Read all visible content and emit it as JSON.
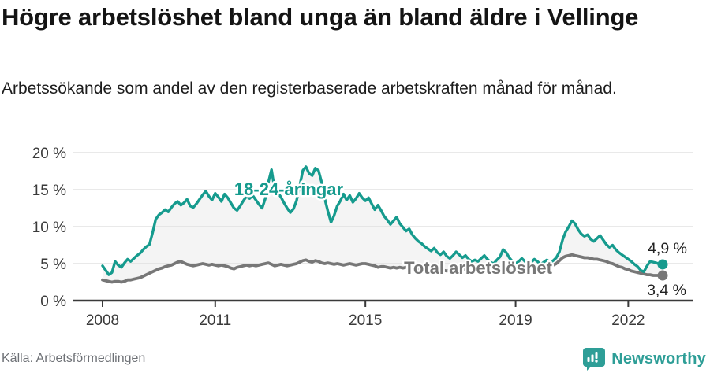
{
  "header": {
    "title": "Högre arbetslöshet bland unga än bland äldre i Vellinge",
    "subtitle": "Arbetssökande som andel av den registerbaserade arbetskraften månad för månad."
  },
  "footer": {
    "source": "Källa: Arbetsförmedlingen",
    "brand": "Newsworthy"
  },
  "theme": {
    "teal": "#169b8e",
    "gray": "#777777",
    "grid": "#dcdcdc",
    "axis": "#3a3a3a",
    "fill_between": "#f4f4f4",
    "value_label": "#222222",
    "brand_teal": "#2e9e97"
  },
  "chart_data": {
    "type": "line",
    "title": "Högre arbetslöshet bland unga än bland äldre i Vellinge",
    "subtitle": "Arbetssökande som andel av den registerbaserade arbetskraften månad för månad.",
    "frequency": "monthly",
    "x_start": "2008-01",
    "x_end": "2022-12",
    "ylim": [
      0,
      20
    ],
    "grid": true,
    "legend_position": "inline-labels",
    "y_tick_labels": [
      "0 %",
      "5 %",
      "10 %",
      "15 %",
      "20 %"
    ],
    "y_ticks": [
      0,
      5,
      10,
      15,
      20
    ],
    "x_tick_labels": [
      "2008",
      "2011",
      "2015",
      "2019",
      "2022"
    ],
    "x_tick_years": [
      2008,
      2011,
      2015,
      2019,
      2022
    ],
    "series": [
      {
        "name": "18-24-åringar",
        "color": "#169b8e",
        "end_label": "4,9 %",
        "end_value": 4.9,
        "values": [
          4.7,
          4.1,
          3.5,
          3.8,
          5.3,
          4.8,
          4.5,
          5.1,
          5.6,
          5.3,
          5.7,
          6.1,
          6.4,
          6.9,
          7.3,
          7.6,
          9.2,
          11.0,
          11.6,
          11.9,
          12.3,
          12.0,
          12.6,
          13.1,
          13.4,
          12.9,
          13.2,
          13.7,
          12.8,
          12.6,
          13.1,
          13.7,
          14.3,
          14.8,
          14.1,
          13.6,
          14.5,
          14.0,
          13.4,
          14.4,
          13.9,
          13.2,
          12.5,
          12.2,
          12.8,
          13.5,
          14.1,
          13.8,
          14.2,
          13.6,
          13.0,
          12.5,
          13.8,
          16.0,
          17.7,
          15.0,
          14.6,
          14.0,
          13.2,
          12.5,
          11.9,
          12.4,
          13.5,
          15.5,
          17.6,
          18.1,
          17.2,
          16.9,
          17.9,
          17.6,
          16.0,
          13.8,
          12.1,
          10.6,
          11.5,
          12.8,
          13.5,
          14.4,
          13.6,
          14.2,
          13.3,
          13.8,
          14.5,
          13.9,
          13.5,
          13.9,
          13.1,
          12.3,
          12.9,
          12.2,
          11.4,
          10.9,
          10.3,
          10.8,
          11.3,
          10.4,
          9.9,
          9.4,
          9.7,
          8.9,
          8.4,
          8.0,
          7.7,
          7.3,
          7.0,
          6.7,
          7.1,
          6.5,
          6.2,
          6.6,
          6.0,
          5.7,
          6.1,
          6.6,
          6.2,
          5.8,
          6.1,
          5.6,
          5.3,
          5.5,
          5.3,
          5.7,
          6.1,
          5.6,
          5.2,
          5.0,
          5.5,
          5.9,
          6.9,
          6.5,
          5.8,
          5.3,
          5.0,
          5.3,
          5.7,
          5.3,
          4.9,
          5.2,
          5.6,
          5.3,
          4.9,
          5.2,
          5.5,
          5.2,
          5.4,
          5.8,
          6.6,
          8.2,
          9.3,
          10.0,
          10.8,
          10.4,
          9.6,
          9.0,
          8.7,
          8.9,
          8.3,
          8.0,
          8.4,
          8.8,
          8.2,
          7.6,
          7.2,
          7.5,
          6.9,
          6.5,
          6.2,
          5.9,
          5.6,
          5.3,
          4.9,
          4.6,
          4.1,
          3.9,
          4.7,
          5.3,
          5.2,
          5.1,
          4.9,
          4.9
        ]
      },
      {
        "name": "Total arbetslöshet",
        "color": "#777777",
        "end_label": "3,4 %",
        "end_value": 3.4,
        "values": [
          2.8,
          2.7,
          2.6,
          2.5,
          2.6,
          2.6,
          2.5,
          2.6,
          2.8,
          2.8,
          2.9,
          3.0,
          3.1,
          3.3,
          3.5,
          3.7,
          3.9,
          4.1,
          4.3,
          4.4,
          4.6,
          4.7,
          4.8,
          5.0,
          5.2,
          5.3,
          5.1,
          4.9,
          4.8,
          4.7,
          4.8,
          4.9,
          5.0,
          4.9,
          4.8,
          4.9,
          4.8,
          4.7,
          4.8,
          4.7,
          4.6,
          4.4,
          4.3,
          4.5,
          4.6,
          4.7,
          4.8,
          4.7,
          4.8,
          4.7,
          4.8,
          4.9,
          5.0,
          5.1,
          4.9,
          4.7,
          4.8,
          4.9,
          4.8,
          4.7,
          4.8,
          4.9,
          5.0,
          5.2,
          5.4,
          5.5,
          5.3,
          5.2,
          5.4,
          5.3,
          5.1,
          5.0,
          5.1,
          5.0,
          4.9,
          5.0,
          4.9,
          4.8,
          4.9,
          5.0,
          4.9,
          4.8,
          4.9,
          5.0,
          5.0,
          4.9,
          4.8,
          4.7,
          4.5,
          4.6,
          4.6,
          4.5,
          4.4,
          4.5,
          4.4,
          4.5,
          4.4,
          4.5,
          4.4,
          4.3,
          4.2,
          4.3,
          4.2,
          4.1,
          4.2,
          4.1,
          4.2,
          4.1,
          4.2,
          4.1,
          4.0,
          4.1,
          4.2,
          4.1,
          4.0,
          4.1,
          4.2,
          4.1,
          4.0,
          4.1,
          4.0,
          4.1,
          4.2,
          4.1,
          4.0,
          3.9,
          4.0,
          4.1,
          4.2,
          4.1,
          4.0,
          3.9,
          4.0,
          4.1,
          4.0,
          4.1,
          4.2,
          4.1,
          4.2,
          4.3,
          4.4,
          4.5,
          4.6,
          4.7,
          4.8,
          5.0,
          5.4,
          5.8,
          6.0,
          6.1,
          6.2,
          6.1,
          6.0,
          5.9,
          5.8,
          5.8,
          5.7,
          5.6,
          5.6,
          5.5,
          5.4,
          5.3,
          5.1,
          5.0,
          4.8,
          4.6,
          4.5,
          4.3,
          4.2,
          4.0,
          3.9,
          3.8,
          3.7,
          3.6,
          3.5,
          3.5,
          3.4,
          3.4,
          3.4,
          3.4
        ]
      }
    ]
  }
}
